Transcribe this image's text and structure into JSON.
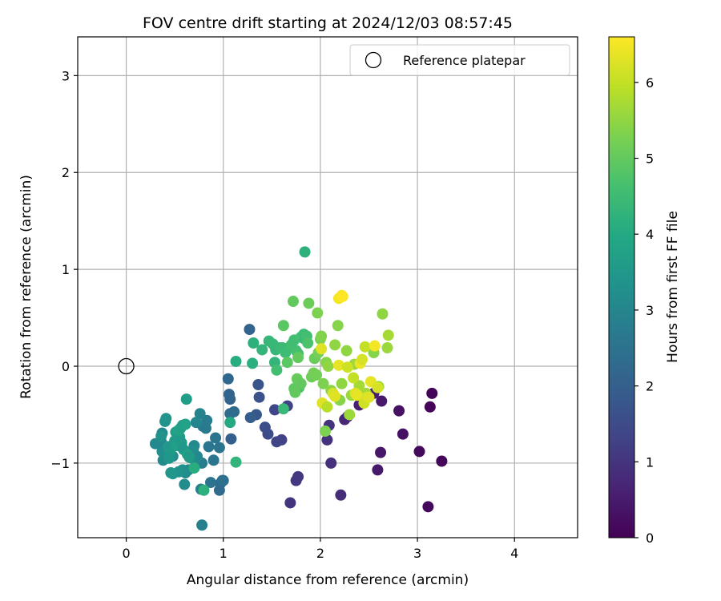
{
  "chart_data": {
    "type": "scatter",
    "title": "FOV centre drift starting at 2024/12/03 08:57:45",
    "xlabel": "Angular distance from reference (arcmin)",
    "ylabel": "Rotation from reference (arcmin)",
    "xlim": [
      -0.5,
      4.65
    ],
    "ylim": [
      -1.77,
      3.4
    ],
    "xticks": [
      0,
      1,
      2,
      3,
      4
    ],
    "xtick_labels": [
      "0",
      "1",
      "2",
      "3",
      "4"
    ],
    "yticks": [
      -1,
      0,
      1,
      2,
      3
    ],
    "ytick_labels": [
      "−1",
      "0",
      "1",
      "2",
      "3"
    ],
    "grid": true,
    "legend": {
      "placement": "top-right",
      "label": "Reference platepar"
    },
    "reference_point": {
      "x": 0,
      "y": 0
    },
    "colorbar": {
      "label": "Hours from first FF file",
      "range": [
        0,
        6.6
      ],
      "ticks": [
        0,
        1,
        2,
        3,
        4,
        5,
        6
      ],
      "tick_labels": [
        "0",
        "1",
        "2",
        "3",
        "4",
        "5",
        "6"
      ],
      "colormap": "viridis"
    },
    "series": [
      {
        "values": [
          {
            "x": 3.15,
            "y": -0.28,
            "t": 0.05
          },
          {
            "x": 3.13,
            "y": -0.42,
            "t": 0.1
          },
          {
            "x": 3.25,
            "y": -0.98,
            "t": 0.1
          },
          {
            "x": 3.02,
            "y": -0.88,
            "t": 0.15
          },
          {
            "x": 3.11,
            "y": -1.45,
            "t": 0.15
          },
          {
            "x": 2.85,
            "y": -0.7,
            "t": 0.3
          },
          {
            "x": 2.81,
            "y": -0.46,
            "t": 0.3
          },
          {
            "x": 2.63,
            "y": -0.36,
            "t": 0.45
          },
          {
            "x": 2.62,
            "y": -0.89,
            "t": 0.4
          },
          {
            "x": 2.59,
            "y": -1.07,
            "t": 0.45
          },
          {
            "x": 2.55,
            "y": -0.28,
            "t": 0.55
          },
          {
            "x": 2.4,
            "y": -0.4,
            "t": 0.6
          },
          {
            "x": 2.28,
            "y": -0.52,
            "t": 0.7
          },
          {
            "x": 2.25,
            "y": -0.55,
            "t": 0.75
          },
          {
            "x": 2.21,
            "y": -1.33,
            "t": 0.85
          },
          {
            "x": 2.11,
            "y": -1.0,
            "t": 0.9
          },
          {
            "x": 2.07,
            "y": -0.76,
            "t": 0.95
          },
          {
            "x": 2.09,
            "y": -0.61,
            "t": 1.0
          },
          {
            "x": 1.69,
            "y": -1.41,
            "t": 1.0
          },
          {
            "x": 1.77,
            "y": -1.14,
            "t": 1.05
          },
          {
            "x": 1.75,
            "y": -1.18,
            "t": 1.1
          },
          {
            "x": 1.66,
            "y": -0.41,
            "t": 1.25
          },
          {
            "x": 1.6,
            "y": -0.76,
            "t": 1.3
          },
          {
            "x": 1.55,
            "y": -0.78,
            "t": 1.35
          },
          {
            "x": 1.53,
            "y": -0.45,
            "t": 1.4
          },
          {
            "x": 1.46,
            "y": -0.7,
            "t": 1.5
          },
          {
            "x": 1.43,
            "y": -0.63,
            "t": 1.55
          },
          {
            "x": 1.37,
            "y": -0.32,
            "t": 1.65
          },
          {
            "x": 1.36,
            "y": -0.19,
            "t": 1.7
          },
          {
            "x": 1.34,
            "y": -0.5,
            "t": 1.8
          },
          {
            "x": 1.28,
            "y": -0.53,
            "t": 1.95
          },
          {
            "x": 1.27,
            "y": 0.38,
            "t": 2.1
          },
          {
            "x": 1.08,
            "y": -0.75,
            "t": 2.0
          },
          {
            "x": 1.07,
            "y": -0.34,
            "t": 2.1
          },
          {
            "x": 1.06,
            "y": -0.29,
            "t": 2.15
          },
          {
            "x": 1.05,
            "y": -0.13,
            "t": 2.2
          },
          {
            "x": 1.11,
            "y": -0.47,
            "t": 2.3
          },
          {
            "x": 1.07,
            "y": -0.49,
            "t": 2.35
          },
          {
            "x": 0.97,
            "y": -1.21,
            "t": 2.25
          },
          {
            "x": 0.96,
            "y": -1.28,
            "t": 2.3
          },
          {
            "x": 0.99,
            "y": -1.18,
            "t": 2.4
          },
          {
            "x": 1.0,
            "y": -1.18,
            "t": 2.45
          },
          {
            "x": 0.96,
            "y": -0.84,
            "t": 2.5
          },
          {
            "x": 0.9,
            "y": -0.97,
            "t": 2.55
          },
          {
            "x": 0.92,
            "y": -0.74,
            "t": 2.6
          },
          {
            "x": 0.87,
            "y": -1.2,
            "t": 2.5
          },
          {
            "x": 0.85,
            "y": -0.83,
            "t": 2.55
          },
          {
            "x": 0.82,
            "y": -0.64,
            "t": 2.7
          },
          {
            "x": 0.79,
            "y": -0.62,
            "t": 2.7
          },
          {
            "x": 0.83,
            "y": -0.56,
            "t": 2.75
          },
          {
            "x": 0.78,
            "y": -1.0,
            "t": 2.8
          },
          {
            "x": 0.77,
            "y": -1.27,
            "t": 2.85
          },
          {
            "x": 0.78,
            "y": -1.64,
            "t": 2.85
          },
          {
            "x": 0.76,
            "y": -0.49,
            "t": 2.9
          },
          {
            "x": 0.72,
            "y": -0.58,
            "t": 3.0
          },
          {
            "x": 0.73,
            "y": -0.93,
            "t": 3.0
          },
          {
            "x": 0.72,
            "y": -0.96,
            "t": 3.05
          },
          {
            "x": 0.7,
            "y": -0.82,
            "t": 3.1
          },
          {
            "x": 0.69,
            "y": -0.86,
            "t": 3.2
          },
          {
            "x": 0.7,
            "y": -1.05,
            "t": 3.3
          },
          {
            "x": 0.68,
            "y": -0.95,
            "t": 3.15
          },
          {
            "x": 0.64,
            "y": -1.07,
            "t": 3.1
          },
          {
            "x": 0.61,
            "y": -1.1,
            "t": 3.2
          },
          {
            "x": 0.58,
            "y": -1.07,
            "t": 3.25
          },
          {
            "x": 0.6,
            "y": -1.22,
            "t": 3.2
          },
          {
            "x": 0.54,
            "y": -1.09,
            "t": 3.3
          },
          {
            "x": 0.48,
            "y": -1.11,
            "t": 3.4
          },
          {
            "x": 0.46,
            "y": -1.1,
            "t": 3.45
          },
          {
            "x": 0.48,
            "y": -0.93,
            "t": 3.2
          },
          {
            "x": 0.4,
            "y": -0.92,
            "t": 3.1
          },
          {
            "x": 0.38,
            "y": -0.97,
            "t": 3.15
          },
          {
            "x": 0.37,
            "y": -0.88,
            "t": 3.25
          },
          {
            "x": 0.36,
            "y": -0.78,
            "t": 3.0
          },
          {
            "x": 0.37,
            "y": -0.69,
            "t": 3.05
          },
          {
            "x": 0.3,
            "y": -0.8,
            "t": 3.1
          },
          {
            "x": 0.36,
            "y": -0.72,
            "t": 3.35
          },
          {
            "x": 0.4,
            "y": -0.57,
            "t": 3.3
          },
          {
            "x": 0.41,
            "y": -0.54,
            "t": 3.4
          },
          {
            "x": 0.43,
            "y": -0.83,
            "t": 3.5
          },
          {
            "x": 0.45,
            "y": -0.88,
            "t": 3.55
          },
          {
            "x": 0.44,
            "y": -0.95,
            "t": 3.45
          },
          {
            "x": 0.5,
            "y": -0.77,
            "t": 3.6
          },
          {
            "x": 0.51,
            "y": -0.68,
            "t": 3.65
          },
          {
            "x": 0.52,
            "y": -0.82,
            "t": 3.7
          },
          {
            "x": 0.55,
            "y": -0.73,
            "t": 3.6
          },
          {
            "x": 0.54,
            "y": -0.66,
            "t": 3.8
          },
          {
            "x": 0.56,
            "y": -0.64,
            "t": 3.75
          },
          {
            "x": 0.58,
            "y": -0.61,
            "t": 3.7
          },
          {
            "x": 0.57,
            "y": -0.79,
            "t": 3.55
          },
          {
            "x": 0.59,
            "y": -0.86,
            "t": 3.5
          },
          {
            "x": 0.61,
            "y": -0.6,
            "t": 3.8
          },
          {
            "x": 0.62,
            "y": -0.34,
            "t": 3.65
          },
          {
            "x": 0.63,
            "y": -0.91,
            "t": 3.7
          },
          {
            "x": 0.65,
            "y": -0.94,
            "t": 3.6
          },
          {
            "x": 0.7,
            "y": -1.05,
            "t": 4.1
          },
          {
            "x": 0.8,
            "y": -1.28,
            "t": 4.2
          },
          {
            "x": 1.07,
            "y": -0.58,
            "t": 4.0
          },
          {
            "x": 1.13,
            "y": 0.05,
            "t": 4.1
          },
          {
            "x": 1.13,
            "y": -0.99,
            "t": 4.3
          },
          {
            "x": 1.3,
            "y": 0.03,
            "t": 4.15
          },
          {
            "x": 1.31,
            "y": 0.24,
            "t": 4.2
          },
          {
            "x": 1.4,
            "y": 0.17,
            "t": 4.3
          },
          {
            "x": 1.47,
            "y": 0.26,
            "t": 4.35
          },
          {
            "x": 1.51,
            "y": 0.23,
            "t": 4.4
          },
          {
            "x": 1.54,
            "y": 0.17,
            "t": 4.35
          },
          {
            "x": 1.53,
            "y": 0.04,
            "t": 4.3
          },
          {
            "x": 1.58,
            "y": 0.19,
            "t": 4.4
          },
          {
            "x": 1.61,
            "y": 0.19,
            "t": 4.45
          },
          {
            "x": 1.64,
            "y": 0.14,
            "t": 4.5
          },
          {
            "x": 1.62,
            "y": -0.44,
            "t": 4.4
          },
          {
            "x": 1.7,
            "y": 0.22,
            "t": 4.6
          },
          {
            "x": 1.73,
            "y": 0.27,
            "t": 4.55
          },
          {
            "x": 1.75,
            "y": 0.16,
            "t": 4.6
          },
          {
            "x": 1.77,
            "y": 0.13,
            "t": 4.65
          },
          {
            "x": 1.78,
            "y": -0.22,
            "t": 4.7
          },
          {
            "x": 1.8,
            "y": 0.3,
            "t": 4.65
          },
          {
            "x": 1.83,
            "y": 0.33,
            "t": 4.5
          },
          {
            "x": 1.84,
            "y": 0.28,
            "t": 4.45
          },
          {
            "x": 1.86,
            "y": 0.31,
            "t": 4.6
          },
          {
            "x": 1.87,
            "y": 0.24,
            "t": 4.7
          },
          {
            "x": 1.84,
            "y": 1.18,
            "t": 4.2
          },
          {
            "x": 1.55,
            "y": -0.04,
            "t": 4.6
          },
          {
            "x": 1.62,
            "y": 0.42,
            "t": 4.9
          },
          {
            "x": 1.66,
            "y": 0.04,
            "t": 4.9
          },
          {
            "x": 1.72,
            "y": 0.67,
            "t": 5.0
          },
          {
            "x": 1.73,
            "y": -0.23,
            "t": 4.95
          },
          {
            "x": 1.74,
            "y": -0.27,
            "t": 5.0
          },
          {
            "x": 1.76,
            "y": -0.13,
            "t": 5.05
          },
          {
            "x": 1.77,
            "y": 0.09,
            "t": 5.0
          },
          {
            "x": 1.8,
            "y": -0.18,
            "t": 5.0
          },
          {
            "x": 1.88,
            "y": 0.65,
            "t": 5.1
          },
          {
            "x": 1.91,
            "y": -0.11,
            "t": 5.15
          },
          {
            "x": 1.93,
            "y": -0.07,
            "t": 5.2
          },
          {
            "x": 1.94,
            "y": 0.08,
            "t": 5.1
          },
          {
            "x": 1.96,
            "y": -0.09,
            "t": 5.2
          },
          {
            "x": 1.97,
            "y": 0.55,
            "t": 5.3
          },
          {
            "x": 1.98,
            "y": 0.14,
            "t": 5.2
          },
          {
            "x": 2.0,
            "y": 0.28,
            "t": 5.3
          },
          {
            "x": 2.01,
            "y": 0.31,
            "t": 5.35
          },
          {
            "x": 2.03,
            "y": -0.18,
            "t": 5.3
          },
          {
            "x": 2.05,
            "y": -0.67,
            "t": 5.3
          },
          {
            "x": 2.06,
            "y": 0.04,
            "t": 5.4
          },
          {
            "x": 2.08,
            "y": 0.0,
            "t": 5.5
          },
          {
            "x": 2.11,
            "y": -0.25,
            "t": 5.45
          },
          {
            "x": 2.15,
            "y": 0.22,
            "t": 5.5
          },
          {
            "x": 2.18,
            "y": 0.42,
            "t": 5.4
          },
          {
            "x": 2.2,
            "y": -0.35,
            "t": 5.4
          },
          {
            "x": 2.22,
            "y": -0.18,
            "t": 5.5
          },
          {
            "x": 2.27,
            "y": 0.16,
            "t": 5.5
          },
          {
            "x": 2.3,
            "y": -0.5,
            "t": 5.6
          },
          {
            "x": 2.32,
            "y": -0.3,
            "t": 5.6
          },
          {
            "x": 2.35,
            "y": 0.02,
            "t": 5.6
          },
          {
            "x": 2.4,
            "y": -0.2,
            "t": 5.7
          },
          {
            "x": 2.47,
            "y": -0.28,
            "t": 5.7
          },
          {
            "x": 2.55,
            "y": 0.14,
            "t": 5.4
          },
          {
            "x": 2.6,
            "y": -0.21,
            "t": 5.6
          },
          {
            "x": 2.64,
            "y": 0.54,
            "t": 5.5
          },
          {
            "x": 2.69,
            "y": 0.19,
            "t": 5.6
          },
          {
            "x": 2.7,
            "y": 0.32,
            "t": 5.7
          },
          {
            "x": 2.01,
            "y": 0.18,
            "t": 6.3
          },
          {
            "x": 2.02,
            "y": -0.38,
            "t": 6.3
          },
          {
            "x": 2.13,
            "y": -0.28,
            "t": 6.2
          },
          {
            "x": 2.15,
            "y": -0.31,
            "t": 6.3
          },
          {
            "x": 2.19,
            "y": 0.01,
            "t": 6.35
          },
          {
            "x": 2.19,
            "y": 0.7,
            "t": 6.5
          },
          {
            "x": 2.22,
            "y": 0.73,
            "t": 6.55
          },
          {
            "x": 2.28,
            "y": -0.01,
            "t": 6.1
          },
          {
            "x": 2.34,
            "y": -0.12,
            "t": 6.0
          },
          {
            "x": 2.36,
            "y": -0.28,
            "t": 6.3
          },
          {
            "x": 2.38,
            "y": -0.3,
            "t": 6.35
          },
          {
            "x": 2.41,
            "y": 0.03,
            "t": 6.4
          },
          {
            "x": 2.43,
            "y": 0.07,
            "t": 6.2
          },
          {
            "x": 2.45,
            "y": -0.38,
            "t": 6.1
          },
          {
            "x": 2.46,
            "y": 0.2,
            "t": 6.0
          },
          {
            "x": 2.48,
            "y": -0.32,
            "t": 6.2
          },
          {
            "x": 2.5,
            "y": -0.32,
            "t": 6.3
          },
          {
            "x": 2.52,
            "y": -0.16,
            "t": 6.35
          },
          {
            "x": 2.56,
            "y": 0.21,
            "t": 6.5
          },
          {
            "x": 2.59,
            "y": -0.22,
            "t": 6.2
          },
          {
            "x": 2.07,
            "y": -0.42,
            "t": 5.9
          },
          {
            "x": 2.23,
            "y": 0.72,
            "t": 6.6
          }
        ]
      }
    ]
  }
}
